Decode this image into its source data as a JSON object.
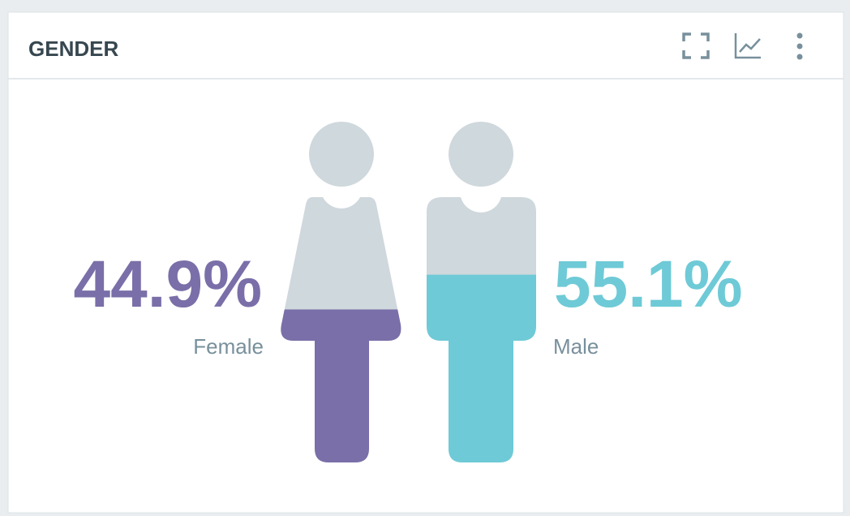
{
  "chart_data": {
    "type": "pictogram",
    "title": "GENDER",
    "categories": [
      "Female",
      "Male"
    ],
    "values": [
      44.9,
      55.1
    ],
    "value_labels": [
      "44.9%",
      "55.1%"
    ],
    "colors": [
      "#7a6fa8",
      "#6ecad6"
    ],
    "ylim": [
      0,
      100
    ]
  }
}
